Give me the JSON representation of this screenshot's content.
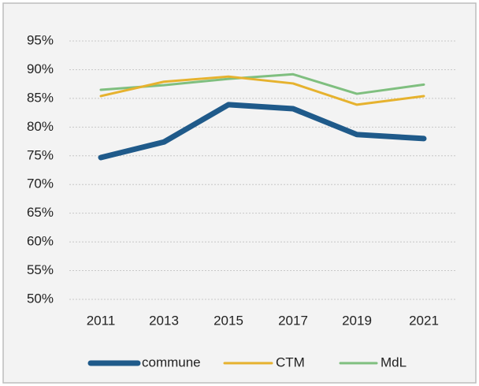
{
  "chart_data": {
    "type": "line",
    "categories": [
      "2011",
      "2013",
      "2015",
      "2017",
      "2019",
      "2021"
    ],
    "series": [
      {
        "name": "commune",
        "color": "#1f5a8a",
        "values": [
          74.7,
          77.4,
          83.9,
          83.2,
          78.7,
          78.0
        ]
      },
      {
        "name": "CTM",
        "color": "#e6b22e",
        "values": [
          85.4,
          87.9,
          88.8,
          87.6,
          83.9,
          85.4
        ]
      },
      {
        "name": "MdL",
        "color": "#7fbf7f",
        "values": [
          86.5,
          87.3,
          88.4,
          89.2,
          85.8,
          87.4
        ]
      }
    ],
    "ylim": [
      50,
      95
    ],
    "yticks": [
      {
        "value": 50,
        "label": "50%"
      },
      {
        "value": 55,
        "label": "55%"
      },
      {
        "value": 60,
        "label": "60%"
      },
      {
        "value": 65,
        "label": "65%"
      },
      {
        "value": 70,
        "label": "70%"
      },
      {
        "value": 75,
        "label": "75%"
      },
      {
        "value": 80,
        "label": "80%"
      },
      {
        "value": 85,
        "label": "85%"
      },
      {
        "value": 90,
        "label": "90%"
      },
      {
        "value": 95,
        "label": "95%"
      }
    ],
    "grid": true,
    "legend": "bottom"
  }
}
